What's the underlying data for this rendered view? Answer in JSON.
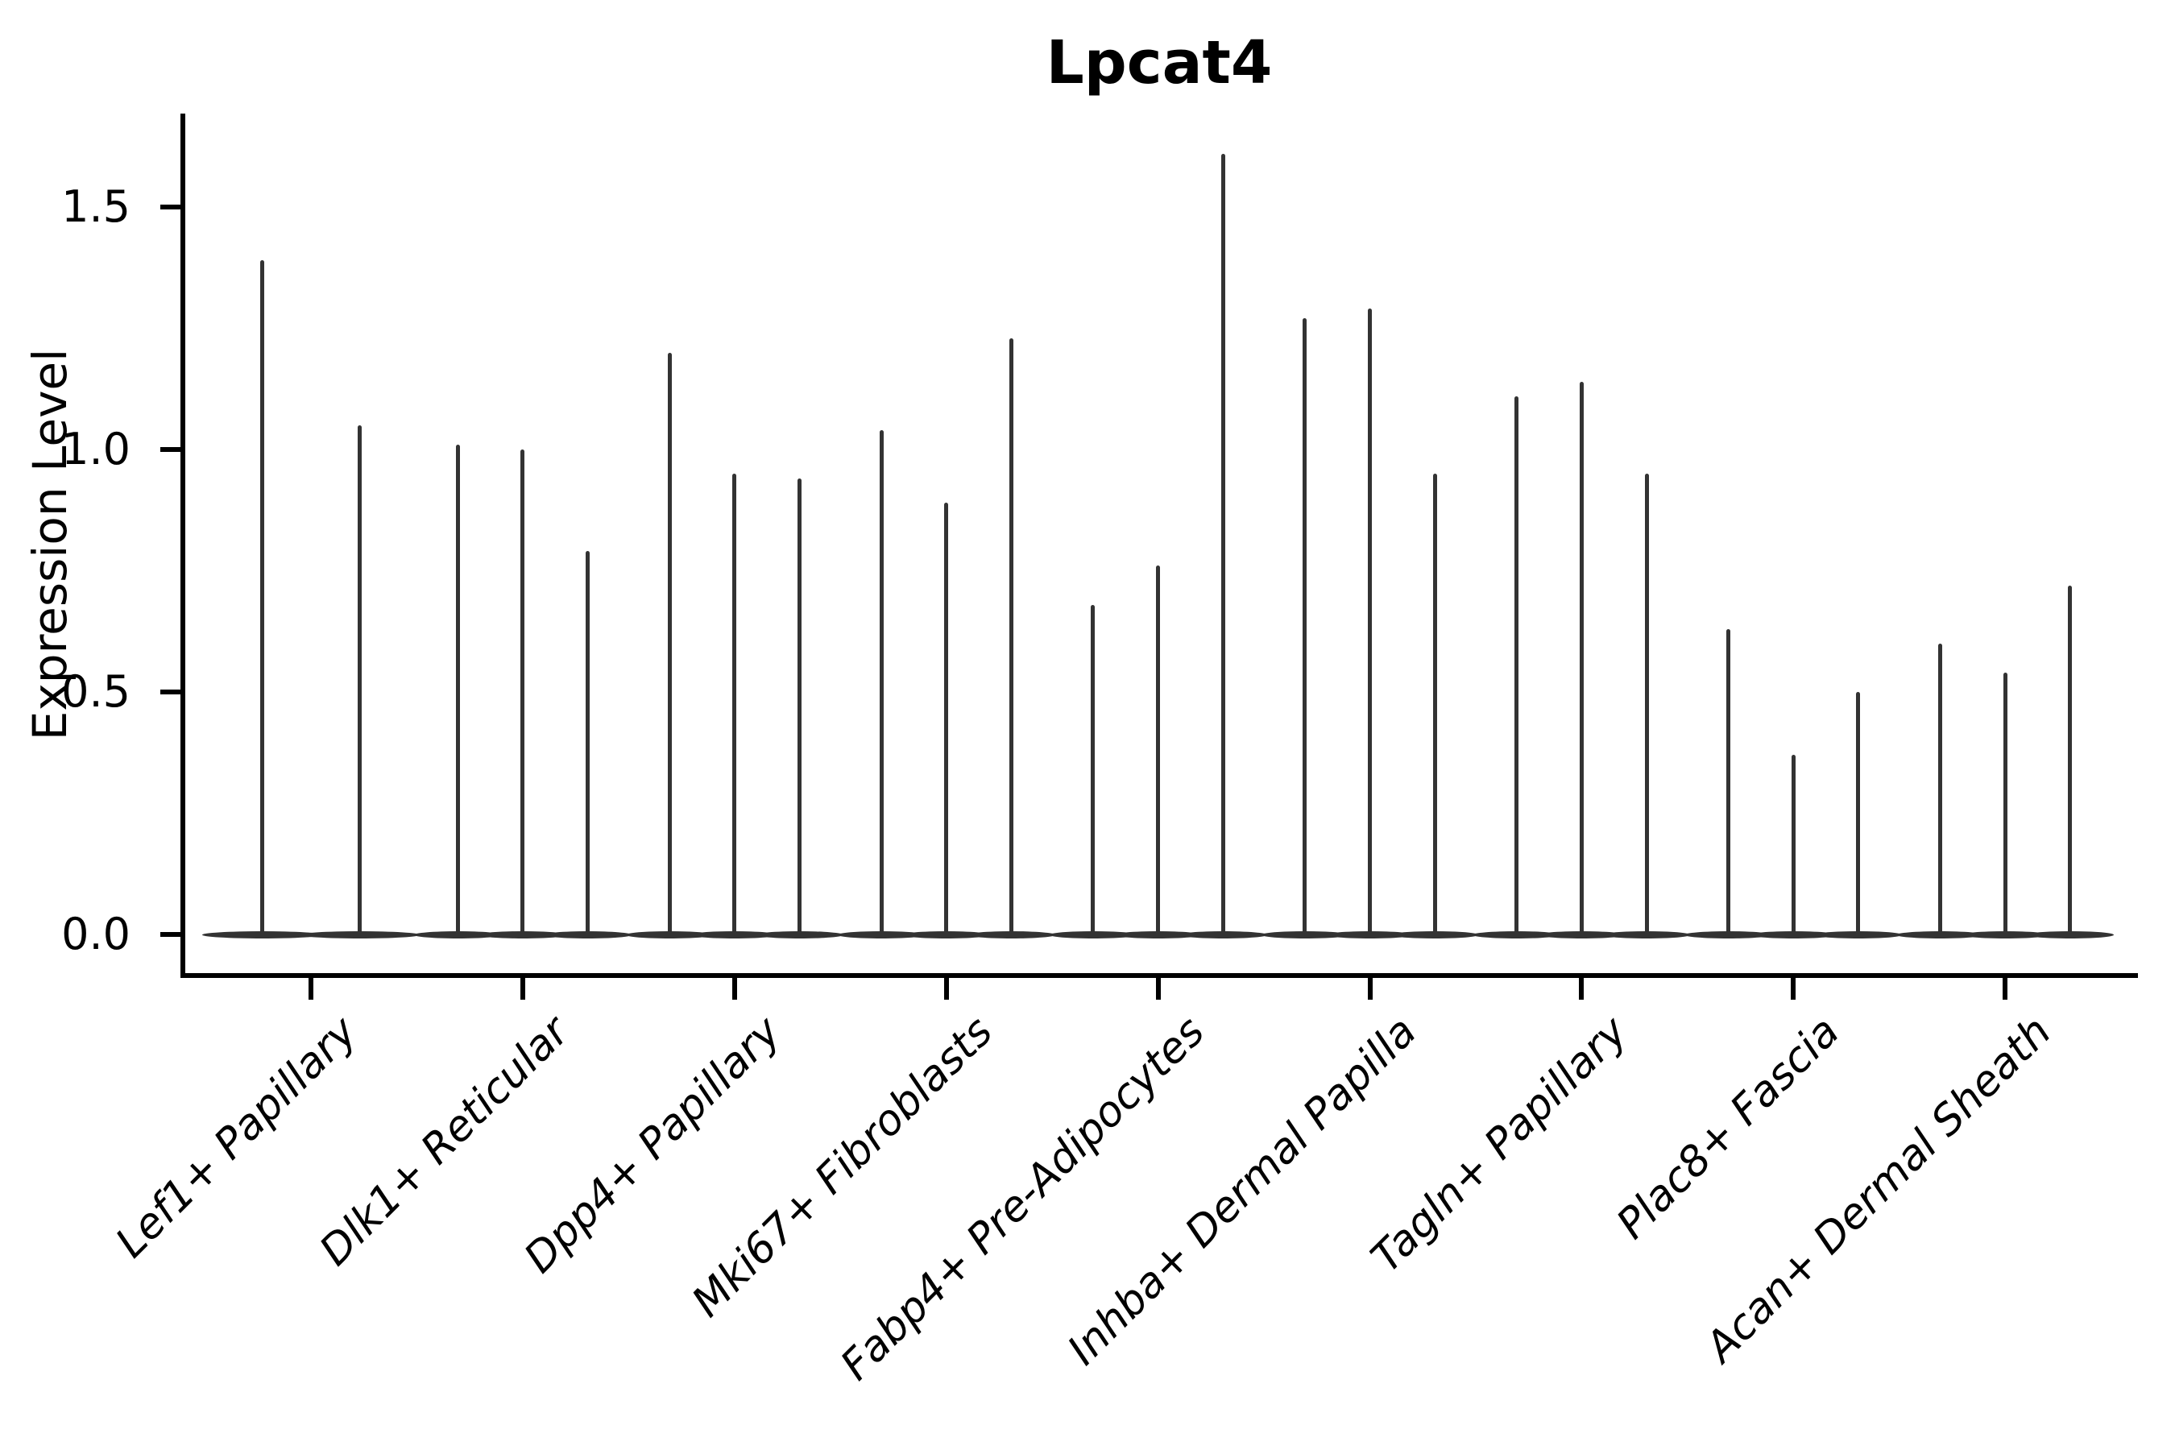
{
  "chart_data": {
    "type": "violin",
    "title": "Lpcat4",
    "ylabel": "Expression Level",
    "xlabel": "",
    "grid": false,
    "legend": false,
    "ylim": [
      0,
      1.68
    ],
    "yticks": [
      {
        "label": "0.0",
        "value": 0.0
      },
      {
        "label": "0.5",
        "value": 0.5
      },
      {
        "label": "1.0",
        "value": 1.0
      },
      {
        "label": "1.5",
        "value": 1.5
      }
    ],
    "categories": [
      "Lef1+ Papillary",
      "Dlk1+ Reticular",
      "Dpp4+ Papillary",
      "Mki67+ Fibroblasts",
      "Fabp4+ Pre-Adipocytes",
      "Inhba+ Dermal Papilla",
      "Tagln+ Papillary",
      "Plac8+ Fascia",
      "Acan+ Dermal Sheath"
    ],
    "series": [
      {
        "category": "Lef1+ Papillary",
        "violin_maxima": [
          1.39,
          1.05
        ],
        "bulk_at": 0.0
      },
      {
        "category": "Dlk1+ Reticular",
        "violin_maxima": [
          1.01,
          1.0,
          0.79
        ],
        "bulk_at": 0.0
      },
      {
        "category": "Dpp4+ Papillary",
        "violin_maxima": [
          1.2,
          0.95,
          0.94
        ],
        "bulk_at": 0.0
      },
      {
        "category": "Mki67+ Fibroblasts",
        "violin_maxima": [
          1.04,
          0.89,
          1.23
        ],
        "bulk_at": 0.0
      },
      {
        "category": "Fabp4+ Pre-Adipocytes",
        "violin_maxima": [
          0.68,
          0.76,
          1.61
        ],
        "bulk_at": 0.0
      },
      {
        "category": "Inhba+ Dermal Papilla",
        "violin_maxima": [
          1.27,
          1.29,
          0.95
        ],
        "bulk_at": 0.0
      },
      {
        "category": "Tagln+ Papillary",
        "violin_maxima": [
          1.11,
          1.14,
          0.95
        ],
        "bulk_at": 0.0
      },
      {
        "category": "Plac8+ Fascia",
        "violin_maxima": [
          0.63,
          0.37,
          0.5
        ],
        "bulk_at": 0.0
      },
      {
        "category": "Acan+ Dermal Sheath",
        "violin_maxima": [
          0.6,
          0.54,
          0.72
        ],
        "bulk_at": 0.0
      }
    ],
    "violin_color": "#333333",
    "axis_color": "#000000",
    "background_color": "#ffffff"
  }
}
